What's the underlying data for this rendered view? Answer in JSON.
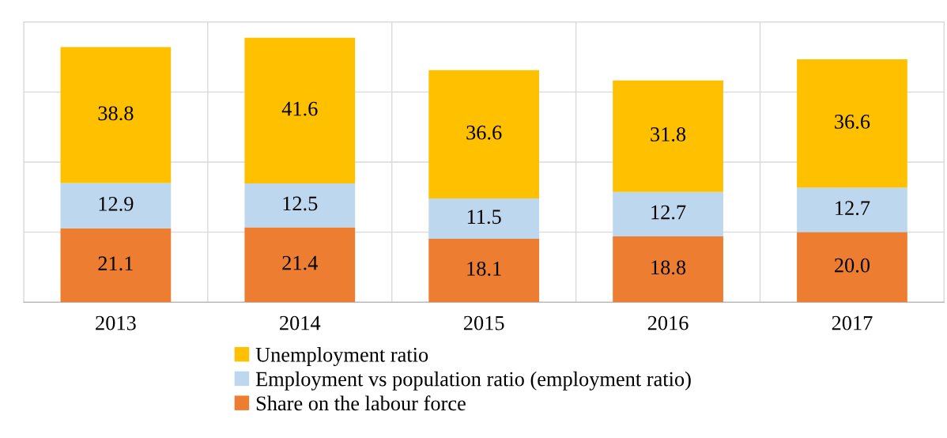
{
  "chart_data": {
    "type": "bar",
    "stacked": true,
    "categories": [
      "2013",
      "2014",
      "2015",
      "2016",
      "2017"
    ],
    "series": [
      {
        "name": "Share on the labour force",
        "color": "#ed7d31",
        "values": [
          21.1,
          21.4,
          18.1,
          18.8,
          20.0
        ],
        "value_labels": [
          "21.1",
          "21.4",
          "18.1",
          "18.8",
          "20.0"
        ]
      },
      {
        "name": "Employment vs population ratio (employment ratio)",
        "color": "#bdd7ee",
        "values": [
          12.9,
          12.5,
          11.5,
          12.7,
          12.7
        ],
        "value_labels": [
          "12.9",
          "12.5",
          "11.5",
          "12.7",
          "12.7"
        ]
      },
      {
        "name": "Unemployment ratio",
        "color": "#ffc000",
        "values": [
          38.8,
          41.6,
          36.6,
          31.8,
          36.6
        ],
        "value_labels": [
          "38.8",
          "41.6",
          "36.6",
          "31.8",
          "36.6"
        ]
      }
    ],
    "ylim": [
      0,
      80
    ],
    "yticks": [
      {
        "value": 0,
        "label": null
      },
      {
        "value": 20,
        "label": null
      },
      {
        "value": 40,
        "label": null
      },
      {
        "value": 60,
        "label": null
      },
      {
        "value": 80,
        "label": null
      }
    ],
    "tick_labels": "x",
    "grid": true,
    "legend": "bottom"
  }
}
